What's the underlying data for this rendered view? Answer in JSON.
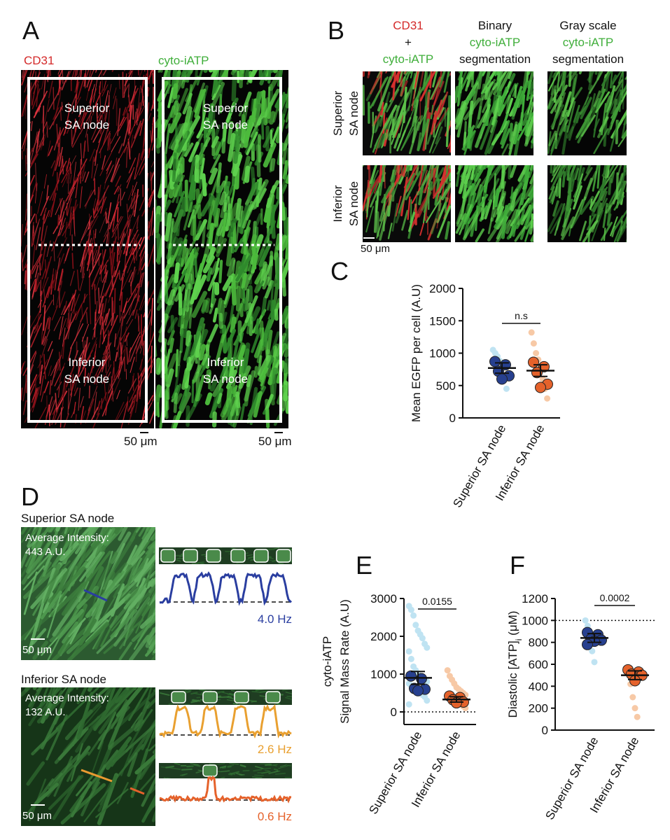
{
  "panel_a": {
    "label": "A",
    "left": {
      "title": "CD31",
      "superior": [
        "Superior",
        "SA node"
      ],
      "inferior": [
        "Inferior",
        "SA node"
      ],
      "scale": "50 μm"
    },
    "right": {
      "title": "cyto-iATP",
      "superior": [
        "Superior",
        "SA node"
      ],
      "inferior": [
        "Inferior",
        "SA node"
      ],
      "scale": "50 μm"
    }
  },
  "panel_b": {
    "label": "B",
    "headers": [
      [
        "CD31",
        "+",
        "cyto-iATP"
      ],
      [
        "Binary",
        "cyto-iATP",
        "segmentation"
      ],
      [
        "Gray scale",
        "cyto-iATP",
        "segmentation"
      ]
    ],
    "rows": [
      [
        "Superior",
        "SA node"
      ],
      [
        "Inferior",
        "SA node"
      ]
    ],
    "scale": "50 μm"
  },
  "panel_d": {
    "label": "D",
    "superior": {
      "title": "Superior SA node",
      "intensity": [
        "Average Intensity:",
        "443 A.U."
      ],
      "scale": "50 μm",
      "freqs": [
        "4.0 Hz"
      ]
    },
    "inferior": {
      "title": "Inferior SA node",
      "intensity": [
        "Average Intensity:",
        "132 A.U."
      ],
      "scale": "50 μm",
      "freqs": [
        "2.6 Hz",
        "0.6 Hz"
      ]
    }
  },
  "chart_data": [
    {
      "type": "dot",
      "panel": "C",
      "ylabel": [
        "Mean EGFP per cell (A.U)"
      ],
      "categories": [
        "Superior SA node",
        "Inferior SA node"
      ],
      "ylim": [
        0,
        2000
      ],
      "yticks": [
        0,
        500,
        1000,
        1500,
        2000
      ],
      "annotation": "n.s",
      "groups": [
        {
          "cells_color": "#bfe3f2",
          "cells": [
            1050,
            1000,
            950,
            880,
            780,
            600,
            450
          ],
          "animals_color": "#27408f",
          "animals": [
            870,
            820,
            720,
            650,
            600
          ],
          "mean": 770,
          "sem": 80
        },
        {
          "cells_color": "#f7c9a6",
          "cells": [
            1320,
            1150,
            1000,
            900,
            780,
            600,
            450,
            300
          ],
          "animals_color": "#e5622b",
          "animals": [
            860,
            790,
            700,
            520,
            470
          ],
          "mean": 730,
          "sem": 90
        }
      ]
    },
    {
      "type": "dot",
      "panel": "E",
      "ylabel": [
        "cyto-iATP",
        "Signal Mass Rate (A.U)"
      ],
      "categories": [
        "Superior SA node",
        "Inferior SA node"
      ],
      "ylim": [
        -333,
        3000
      ],
      "yticks": [
        0,
        1000,
        2000,
        3000
      ],
      "refline": 0,
      "annotation": "0.0155",
      "groups": [
        {
          "cells_color": "#bfe3f2",
          "cells": [
            2800,
            2700,
            2550,
            2300,
            2150,
            2050,
            1950,
            1800,
            1700,
            1600,
            1400,
            1200,
            1100,
            1000,
            950,
            900,
            850,
            800,
            750,
            700,
            650,
            600,
            550,
            500,
            450,
            400,
            300,
            200
          ],
          "animals_color": "#27408f",
          "animals": [
            950,
            880,
            620,
            600,
            560
          ],
          "mean": 900,
          "sem": 170
        },
        {
          "cells_color": "#f7c9a6",
          "cells": [
            1100,
            950,
            850,
            750,
            650,
            600,
            550,
            500,
            450,
            400,
            380,
            350,
            300,
            280,
            250,
            200,
            150,
            100
          ],
          "animals_color": "#e5622b",
          "animals": [
            420,
            380,
            320,
            260,
            240
          ],
          "mean": 330,
          "sem": 70
        }
      ]
    },
    {
      "type": "dot",
      "panel": "F",
      "ylabel": [
        "Diastolic [ATP]"
      ],
      "ylabel_sub": "i",
      "ylabel_tail": " (μM)",
      "categories": [
        "Superior SA node",
        "Inferior SA node"
      ],
      "ylim": [
        0,
        1200
      ],
      "yticks": [
        0,
        200,
        400,
        600,
        800,
        1000,
        1200
      ],
      "refline": 1000,
      "annotation": "0.0002",
      "groups": [
        {
          "cells_color": "#bfe3f2",
          "cells": [
            1000,
            950,
            880,
            720,
            620
          ],
          "animals_color": "#27408f",
          "animals": [
            890,
            870,
            830,
            820,
            810,
            780
          ],
          "mean": 840,
          "sem": 40
        },
        {
          "cells_color": "#f7c9a6",
          "cells": [
            560,
            540,
            420,
            300,
            200,
            120
          ],
          "animals_color": "#e5622b",
          "animals": [
            550,
            530,
            510,
            500,
            450
          ],
          "mean": 500,
          "sem": 40
        }
      ]
    }
  ]
}
